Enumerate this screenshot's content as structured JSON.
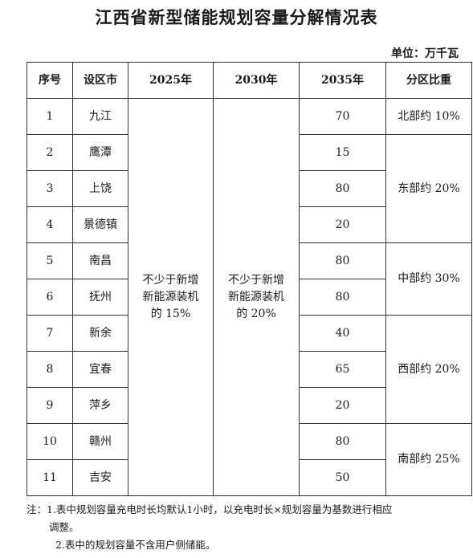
{
  "title": "江西省新型储能规划容量分解情况表",
  "unit": "单位：万千瓦",
  "table": {
    "headers": [
      "序号",
      "设区市",
      "2025年",
      "2030年",
      "2035年",
      "分区比重"
    ],
    "rows": [
      {
        "no": "1",
        "city": "九江",
        "v2035": "70"
      },
      {
        "no": "2",
        "city": "鹰潭",
        "v2035": "15"
      },
      {
        "no": "3",
        "city": "上饶",
        "v2035": "80"
      },
      {
        "no": "4",
        "city": "景德镇",
        "v2035": "20"
      },
      {
        "no": "5",
        "city": "南昌",
        "v2035": "80"
      },
      {
        "no": "6",
        "city": "抚州",
        "v2035": "80"
      },
      {
        "no": "7",
        "city": "新余",
        "v2035": "40"
      },
      {
        "no": "8",
        "city": "宜春",
        "v2035": "65"
      },
      {
        "no": "9",
        "city": "萍乡",
        "v2035": "20"
      },
      {
        "no": "10",
        "city": "赣州",
        "v2035": "80"
      },
      {
        "no": "11",
        "city": "吉安",
        "v2035": "50"
      }
    ],
    "v2025": [
      "不少于新增",
      "新能源装机",
      "的 15%"
    ],
    "v2030": [
      "不少于新增",
      "新能源装机",
      "的 20%"
    ],
    "regions": [
      "北部约 10%",
      "东部约 20%",
      "中部约 30%",
      "西部约 20%",
      "南部约 25%"
    ]
  },
  "notes": {
    "line1": "注：1.表中规划容量充电时长均默认1小时，以充电时长×规划容量为基数进行相应",
    "line1_cont": "调整。",
    "line2": "2.表中的规划容量不含用户侧储能。"
  }
}
